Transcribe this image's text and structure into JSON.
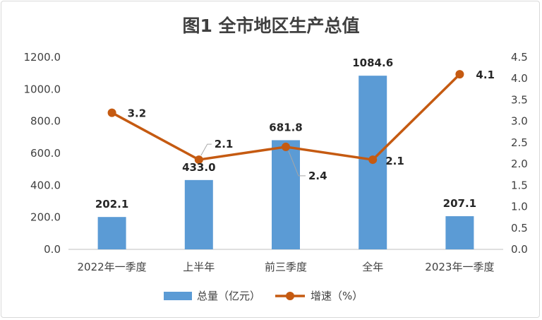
{
  "chart_data": {
    "type": "bar+line",
    "title": "图1 全市地区生产总值",
    "categories": [
      "2022年一季度",
      "上半年",
      "前三季度",
      "全年",
      "2023年一季度"
    ],
    "series": [
      {
        "name": "总量（亿元）",
        "type": "bar",
        "axis": "left",
        "color": "#5b9bd5",
        "values": [
          202.1,
          433.0,
          681.8,
          1084.6,
          207.1
        ],
        "labels": [
          "202.1",
          "433.0",
          "681.8",
          "1084.6",
          "207.1"
        ]
      },
      {
        "name": "增速（%）",
        "type": "line",
        "axis": "right",
        "color": "#c55a11",
        "values": [
          3.2,
          2.1,
          2.4,
          2.1,
          4.1
        ],
        "labels": [
          "3.2",
          "2.1",
          "2.4",
          "2.1",
          "4.1"
        ]
      }
    ],
    "y_left": {
      "min": 0,
      "max": 1200,
      "step": 200,
      "decimals": 1
    },
    "y_right": {
      "min": 0,
      "max": 4.5,
      "step": 0.5,
      "decimals": 1
    },
    "grid": false,
    "legend": "bottom"
  }
}
